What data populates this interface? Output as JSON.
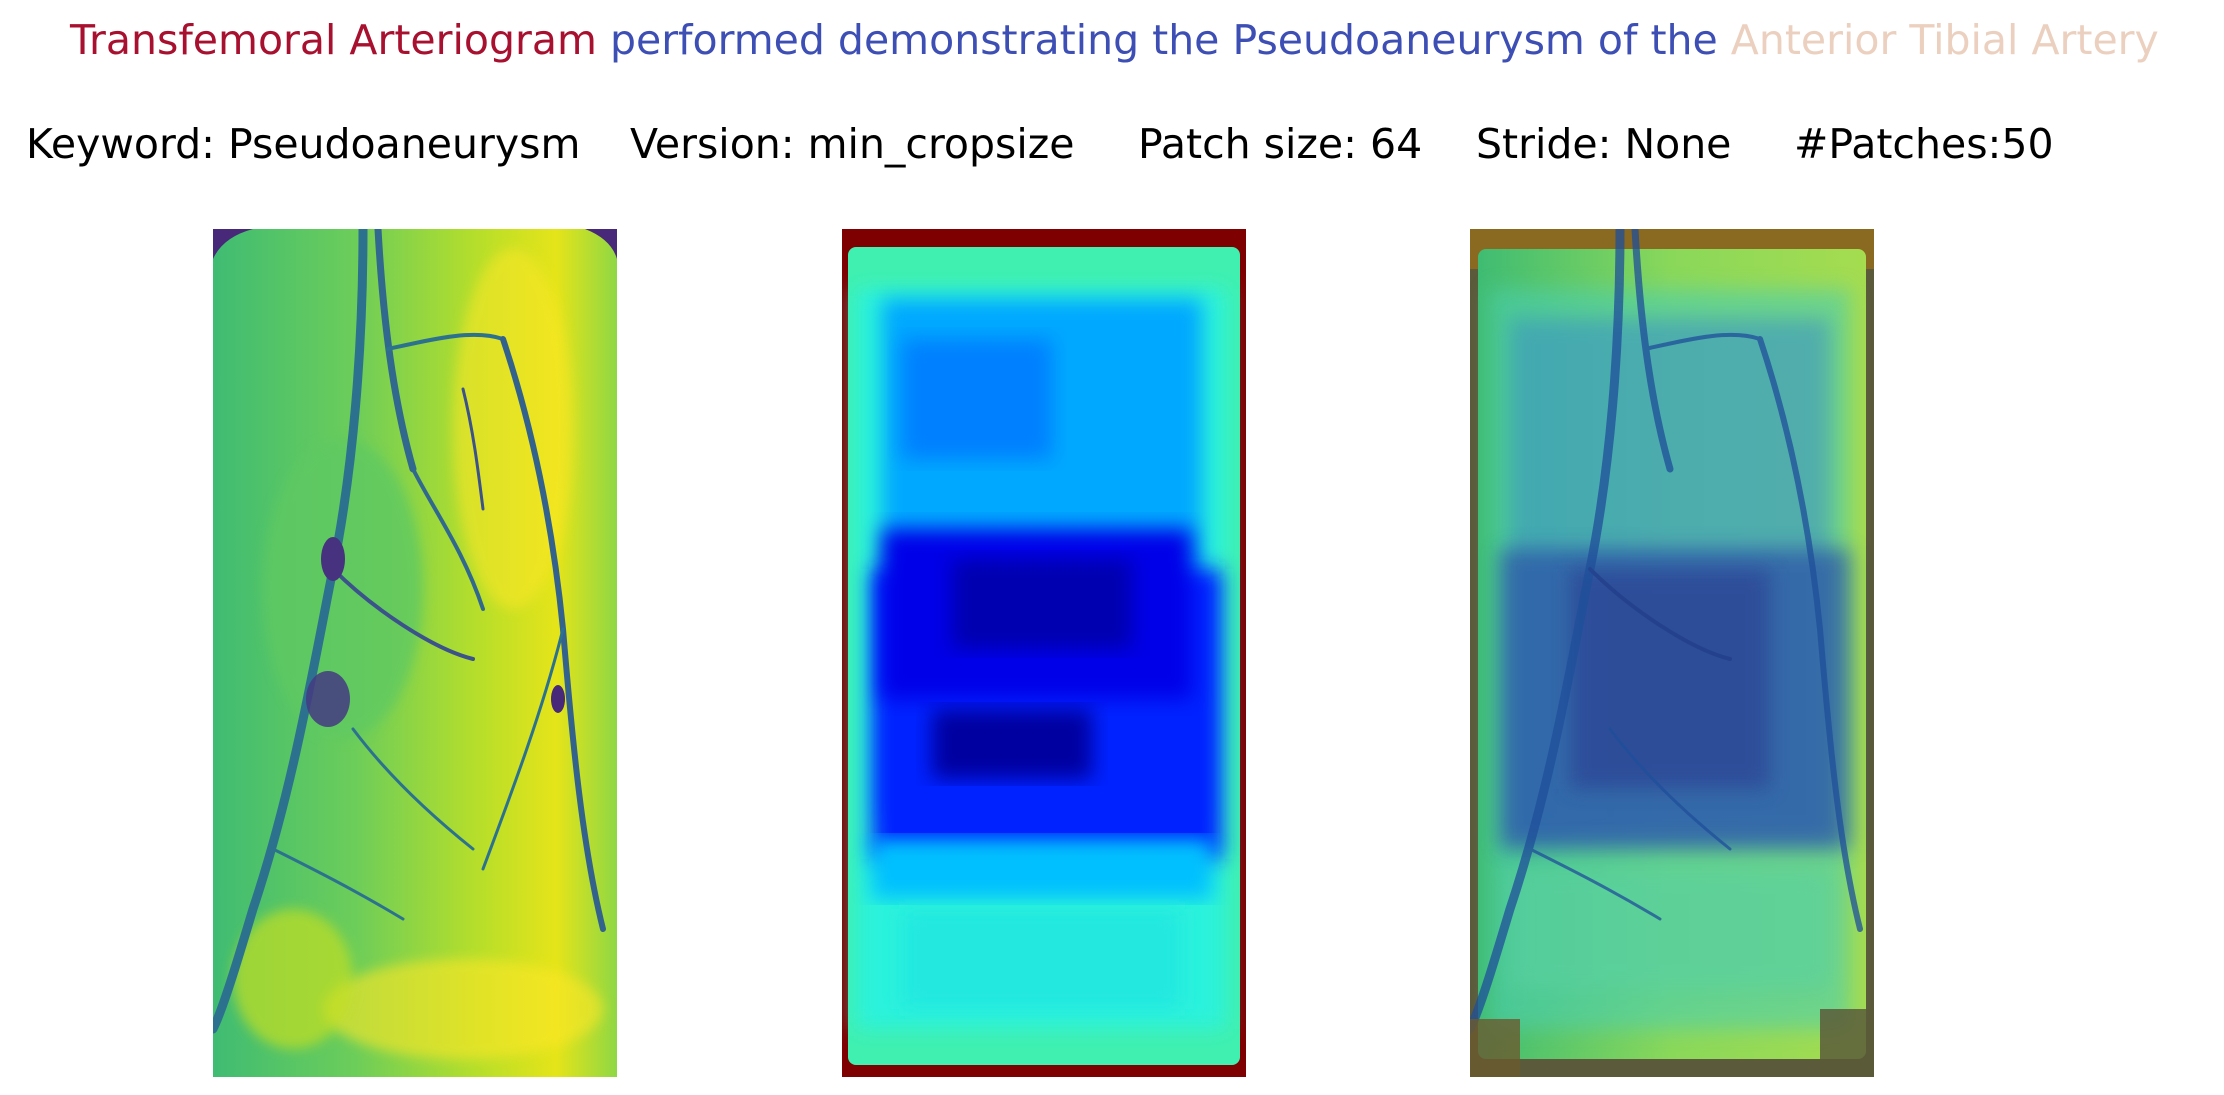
{
  "caption": {
    "segments": [
      {
        "text": "Transfemoral Arteriogram",
        "color": "#a8102f"
      },
      {
        "text": " performed demonstrating the Pseudoaneurysm of the ",
        "color": "#3d4fb5"
      },
      {
        "text": "Anterior Tibial Artery",
        "color": "#ecd0bf"
      }
    ]
  },
  "meta": {
    "keyword": "Keyword: Pseudoaneurysm",
    "version": "Version: min_cropsize",
    "patch_size": "Patch size: 64",
    "stride": "Stride: None",
    "patches": "#Patches:50"
  },
  "panels": [
    {
      "name": "original",
      "colormap": "viridis"
    },
    {
      "name": "heatmap",
      "colormap": "jet"
    },
    {
      "name": "overlay",
      "colormap": "jet-over-viridis"
    }
  ]
}
